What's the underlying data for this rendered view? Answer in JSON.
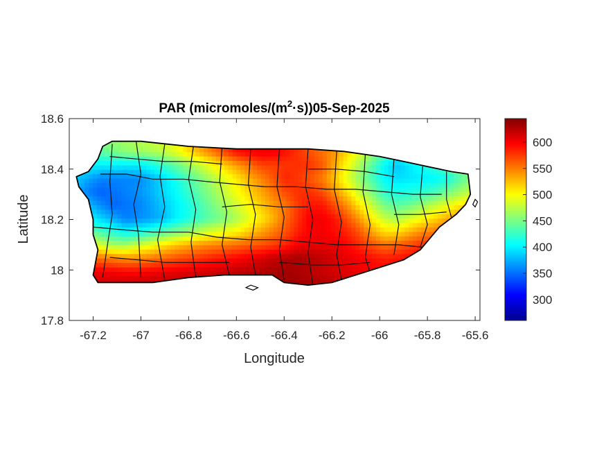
{
  "chart_data": {
    "type": "heatmap",
    "title_prefix": "PAR (micromoles/(m",
    "title_sup": "2",
    "title_suffix": "·s))05-Sep-2025",
    "xlabel": "Longitude",
    "ylabel": "Latitude",
    "xlim": [
      -67.3,
      -65.58
    ],
    "ylim": [
      17.8,
      18.6
    ],
    "xticks": [
      -67.2,
      -67,
      -66.8,
      -66.6,
      -66.4,
      -66.2,
      -66,
      -65.8,
      -65.6
    ],
    "xtick_labels": [
      "-67.2",
      "-67",
      "-66.8",
      "-66.6",
      "-66.4",
      "-66.2",
      "-66",
      "-65.8",
      "-65.6"
    ],
    "yticks": [
      17.8,
      18,
      18.2,
      18.4,
      18.6
    ],
    "ytick_labels": [
      "17.8",
      "18",
      "18.2",
      "18.4",
      "18.6"
    ],
    "colorbar": {
      "colormap": "jet",
      "range": [
        260,
        645
      ],
      "ticks": [
        300,
        350,
        400,
        450,
        500,
        550,
        600
      ],
      "tick_labels": [
        "300",
        "350",
        "400",
        "450",
        "500",
        "550",
        "600"
      ]
    },
    "outline": [
      [
        -67.27,
        18.37
      ],
      [
        -67.22,
        18.39
      ],
      [
        -67.18,
        18.44
      ],
      [
        -67.16,
        18.49
      ],
      [
        -67.12,
        18.51
      ],
      [
        -67.0,
        18.51
      ],
      [
        -66.8,
        18.49
      ],
      [
        -66.6,
        18.48
      ],
      [
        -66.45,
        18.48
      ],
      [
        -66.3,
        18.48
      ],
      [
        -66.15,
        18.47
      ],
      [
        -66.0,
        18.45
      ],
      [
        -65.9,
        18.43
      ],
      [
        -65.8,
        18.41
      ],
      [
        -65.7,
        18.39
      ],
      [
        -65.63,
        18.38
      ],
      [
        -65.62,
        18.3
      ],
      [
        -65.64,
        18.26
      ],
      [
        -65.68,
        18.22
      ],
      [
        -65.75,
        18.17
      ],
      [
        -65.83,
        18.08
      ],
      [
        -65.9,
        18.04
      ],
      [
        -66.0,
        18.01
      ],
      [
        -66.1,
        17.98
      ],
      [
        -66.2,
        17.95
      ],
      [
        -66.3,
        17.94
      ],
      [
        -66.4,
        17.95
      ],
      [
        -66.45,
        17.98
      ],
      [
        -66.55,
        17.98
      ],
      [
        -66.65,
        17.98
      ],
      [
        -66.8,
        17.97
      ],
      [
        -66.95,
        17.95
      ],
      [
        -67.1,
        17.95
      ],
      [
        -67.18,
        17.95
      ],
      [
        -67.2,
        17.98
      ],
      [
        -67.18,
        18.08
      ],
      [
        -67.2,
        18.14
      ],
      [
        -67.2,
        18.2
      ],
      [
        -67.22,
        18.28
      ],
      [
        -67.26,
        18.33
      ]
    ],
    "grid": {
      "x0": -67.27,
      "x1": -65.62,
      "y0": 17.94,
      "y1": 18.52,
      "cols": 33,
      "rows": 12,
      "values": [
        [
          448,
          448,
          455,
          461,
          468,
          474,
          480,
          486,
          493,
          514,
          535,
          555,
          576,
          597,
          601,
          604,
          603,
          592,
          580,
          567,
          555,
          543,
          528,
          514,
          499,
          485,
          470,
          456,
          441,
          447,
          466,
          485,
          498
        ],
        [
          424,
          430,
          440,
          449,
          456,
          462,
          468,
          476,
          490,
          511,
          531,
          551,
          571,
          591,
          598,
          602,
          601,
          590,
          578,
          566,
          554,
          539,
          515,
          491,
          467,
          443,
          419,
          428,
          444,
          459,
          475,
          491,
          501
        ],
        [
          401,
          401,
          400,
          400,
          399,
          399,
          410,
          424,
          439,
          459,
          478,
          498,
          518,
          537,
          554,
          571,
          573,
          578,
          579,
          577,
          563,
          531,
          499,
          467,
          436,
          404,
          382,
          396,
          410,
          424,
          438,
          460,
          483
        ],
        [
          384,
          371,
          358,
          358,
          359,
          360,
          375,
          390,
          411,
          430,
          450,
          469,
          489,
          508,
          529,
          547,
          565,
          583,
          577,
          564,
          549,
          521,
          490,
          459,
          431,
          403,
          392,
          395,
          398,
          401,
          409,
          432,
          452
        ],
        [
          373,
          355,
          345,
          351,
          357,
          363,
          375,
          390,
          404,
          422,
          441,
          459,
          479,
          497,
          516,
          534,
          552,
          570,
          579,
          579,
          568,
          541,
          512,
          479,
          452,
          422,
          413,
          416,
          421,
          429,
          445,
          462,
          478
        ],
        [
          395,
          378,
          361,
          346,
          352,
          357,
          369,
          383,
          398,
          412,
          430,
          448,
          466,
          484,
          502,
          521,
          539,
          553,
          576,
          590,
          589,
          567,
          541,
          508,
          477,
          448,
          438,
          444,
          459,
          474,
          489,
          505,
          519
        ],
        [
          420,
          405,
          389,
          373,
          357,
          361,
          369,
          378,
          398,
          413,
          427,
          441,
          453,
          470,
          491,
          508,
          530,
          557,
          579,
          601,
          600,
          590,
          566,
          538,
          505,
          480,
          469,
          485,
          499,
          514,
          530,
          545,
          552
        ],
        [
          456,
          444,
          431,
          418,
          404,
          410,
          422,
          436,
          449,
          462,
          474,
          487,
          495,
          504,
          520,
          535,
          551,
          567,
          586,
          598,
          601,
          592,
          583,
          564,
          535,
          513,
          512,
          528,
          543,
          551,
          560,
          568,
          572
        ],
        [
          513,
          498,
          483,
          467,
          467,
          482,
          495,
          510,
          523,
          532,
          542,
          547,
          551,
          557,
          563,
          568,
          575,
          585,
          601,
          605,
          605,
          606,
          595,
          582,
          568,
          555,
          560,
          570,
          580,
          581,
          584,
          586,
          586
        ],
        [
          566,
          559,
          555,
          549,
          543,
          546,
          551,
          558,
          566,
          572,
          578,
          585,
          591,
          597,
          603,
          611,
          619,
          627,
          630,
          626,
          620,
          613,
          605,
          599,
          592,
          586,
          590,
          595,
          599,
          600,
          596,
          593,
          590
        ],
        [
          609,
          606,
          602,
          599,
          596,
          596,
          599,
          602,
          605,
          608,
          611,
          614,
          617,
          620,
          623,
          626,
          629,
          631,
          628,
          623,
          617,
          612,
          607,
          602,
          599,
          596,
          597,
          599,
          600,
          598,
          597,
          596,
          594
        ],
        [
          626,
          620,
          615,
          617,
          620,
          622,
          624,
          625,
          626,
          627,
          628,
          629,
          630,
          631,
          631,
          632,
          633,
          635,
          633,
          630,
          627,
          623,
          620,
          617,
          614,
          613,
          612,
          610,
          608,
          605,
          603,
          600,
          598
        ]
      ]
    },
    "borders": [
      [
        [
          -67.17,
          18.38
        ],
        [
          -67.06,
          18.38
        ],
        [
          -66.95,
          18.36
        ],
        [
          -66.82,
          18.36
        ],
        [
          -66.72,
          18.35
        ],
        [
          -66.6,
          18.34
        ],
        [
          -66.48,
          18.33
        ],
        [
          -66.35,
          18.33
        ],
        [
          -66.22,
          18.32
        ],
        [
          -66.1,
          18.32
        ],
        [
          -65.98,
          18.31
        ],
        [
          -65.86,
          18.3
        ],
        [
          -65.74,
          18.3
        ]
      ],
      [
        [
          -67.2,
          18.17
        ],
        [
          -67.08,
          18.16
        ],
        [
          -66.95,
          18.15
        ],
        [
          -66.8,
          18.15
        ],
        [
          -66.68,
          18.13
        ],
        [
          -66.55,
          18.12
        ],
        [
          -66.42,
          18.12
        ],
        [
          -66.3,
          18.11
        ],
        [
          -66.18,
          18.1
        ],
        [
          -66.05,
          18.1
        ],
        [
          -65.92,
          18.1
        ],
        [
          -65.82,
          18.09
        ]
      ],
      [
        [
          -67.12,
          18.5
        ],
        [
          -67.13,
          18.35
        ],
        [
          -67.12,
          18.22
        ],
        [
          -67.14,
          18.1
        ],
        [
          -67.16,
          17.97
        ]
      ],
      [
        [
          -67.02,
          18.51
        ],
        [
          -67.0,
          18.38
        ],
        [
          -67.03,
          18.26
        ],
        [
          -67.01,
          18.14
        ],
        [
          -67.0,
          17.97
        ]
      ],
      [
        [
          -66.9,
          18.5
        ],
        [
          -66.92,
          18.37
        ],
        [
          -66.9,
          18.25
        ],
        [
          -66.93,
          18.12
        ],
        [
          -66.9,
          17.96
        ]
      ],
      [
        [
          -66.78,
          18.49
        ],
        [
          -66.8,
          18.36
        ],
        [
          -66.77,
          18.24
        ],
        [
          -66.79,
          18.11
        ],
        [
          -66.77,
          17.97
        ]
      ],
      [
        [
          -66.66,
          18.49
        ],
        [
          -66.67,
          18.35
        ],
        [
          -66.64,
          18.23
        ],
        [
          -66.66,
          18.1
        ],
        [
          -66.63,
          17.98
        ]
      ],
      [
        [
          -66.54,
          18.48
        ],
        [
          -66.55,
          18.34
        ],
        [
          -66.52,
          18.22
        ],
        [
          -66.54,
          18.09
        ],
        [
          -66.52,
          17.98
        ]
      ],
      [
        [
          -66.42,
          18.48
        ],
        [
          -66.43,
          18.33
        ],
        [
          -66.4,
          18.21
        ],
        [
          -66.42,
          18.08
        ],
        [
          -66.4,
          17.96
        ]
      ],
      [
        [
          -66.3,
          18.48
        ],
        [
          -66.31,
          18.33
        ],
        [
          -66.28,
          18.2
        ],
        [
          -66.3,
          18.07
        ],
        [
          -66.28,
          17.94
        ]
      ],
      [
        [
          -66.18,
          18.47
        ],
        [
          -66.19,
          18.32
        ],
        [
          -66.16,
          18.19
        ],
        [
          -66.18,
          18.06
        ],
        [
          -66.16,
          17.96
        ]
      ],
      [
        [
          -66.06,
          18.46
        ],
        [
          -66.07,
          18.31
        ],
        [
          -66.04,
          18.18
        ],
        [
          -66.06,
          18.05
        ],
        [
          -66.04,
          17.99
        ]
      ],
      [
        [
          -65.94,
          18.44
        ],
        [
          -65.95,
          18.3
        ],
        [
          -65.92,
          18.18
        ],
        [
          -65.94,
          18.06
        ]
      ],
      [
        [
          -65.82,
          18.41
        ],
        [
          -65.83,
          18.29
        ],
        [
          -65.8,
          18.18
        ],
        [
          -65.83,
          18.09
        ]
      ],
      [
        [
          -65.72,
          18.39
        ],
        [
          -65.72,
          18.28
        ],
        [
          -65.7,
          18.21
        ]
      ],
      [
        [
          -67.13,
          18.45
        ],
        [
          -67.02,
          18.44
        ],
        [
          -66.9,
          18.43
        ],
        [
          -66.78,
          18.43
        ],
        [
          -66.66,
          18.42
        ]
      ],
      [
        [
          -66.66,
          18.25
        ],
        [
          -66.54,
          18.26
        ],
        [
          -66.42,
          18.25
        ],
        [
          -66.3,
          18.25
        ]
      ],
      [
        [
          -66.3,
          18.4
        ],
        [
          -66.18,
          18.4
        ],
        [
          -66.06,
          18.39
        ],
        [
          -65.94,
          18.37
        ]
      ],
      [
        [
          -67.13,
          18.05
        ],
        [
          -67.01,
          18.04
        ],
        [
          -66.9,
          18.03
        ],
        [
          -66.77,
          18.03
        ],
        [
          -66.63,
          18.03
        ]
      ],
      [
        [
          -66.42,
          18.03
        ],
        [
          -66.28,
          18.02
        ],
        [
          -66.16,
          18.02
        ],
        [
          -66.04,
          18.03
        ]
      ],
      [
        [
          -65.94,
          18.22
        ],
        [
          -65.83,
          18.22
        ],
        [
          -65.72,
          18.23
        ]
      ]
    ],
    "islands": [
      [
        [
          -66.56,
          17.93
        ],
        [
          -66.53,
          17.92
        ],
        [
          -66.51,
          17.93
        ],
        [
          -66.54,
          17.94
        ]
      ],
      [
        [
          -65.6,
          18.25
        ],
        [
          -65.59,
          18.27
        ],
        [
          -65.6,
          18.28
        ],
        [
          -65.61,
          18.26
        ]
      ]
    ]
  }
}
